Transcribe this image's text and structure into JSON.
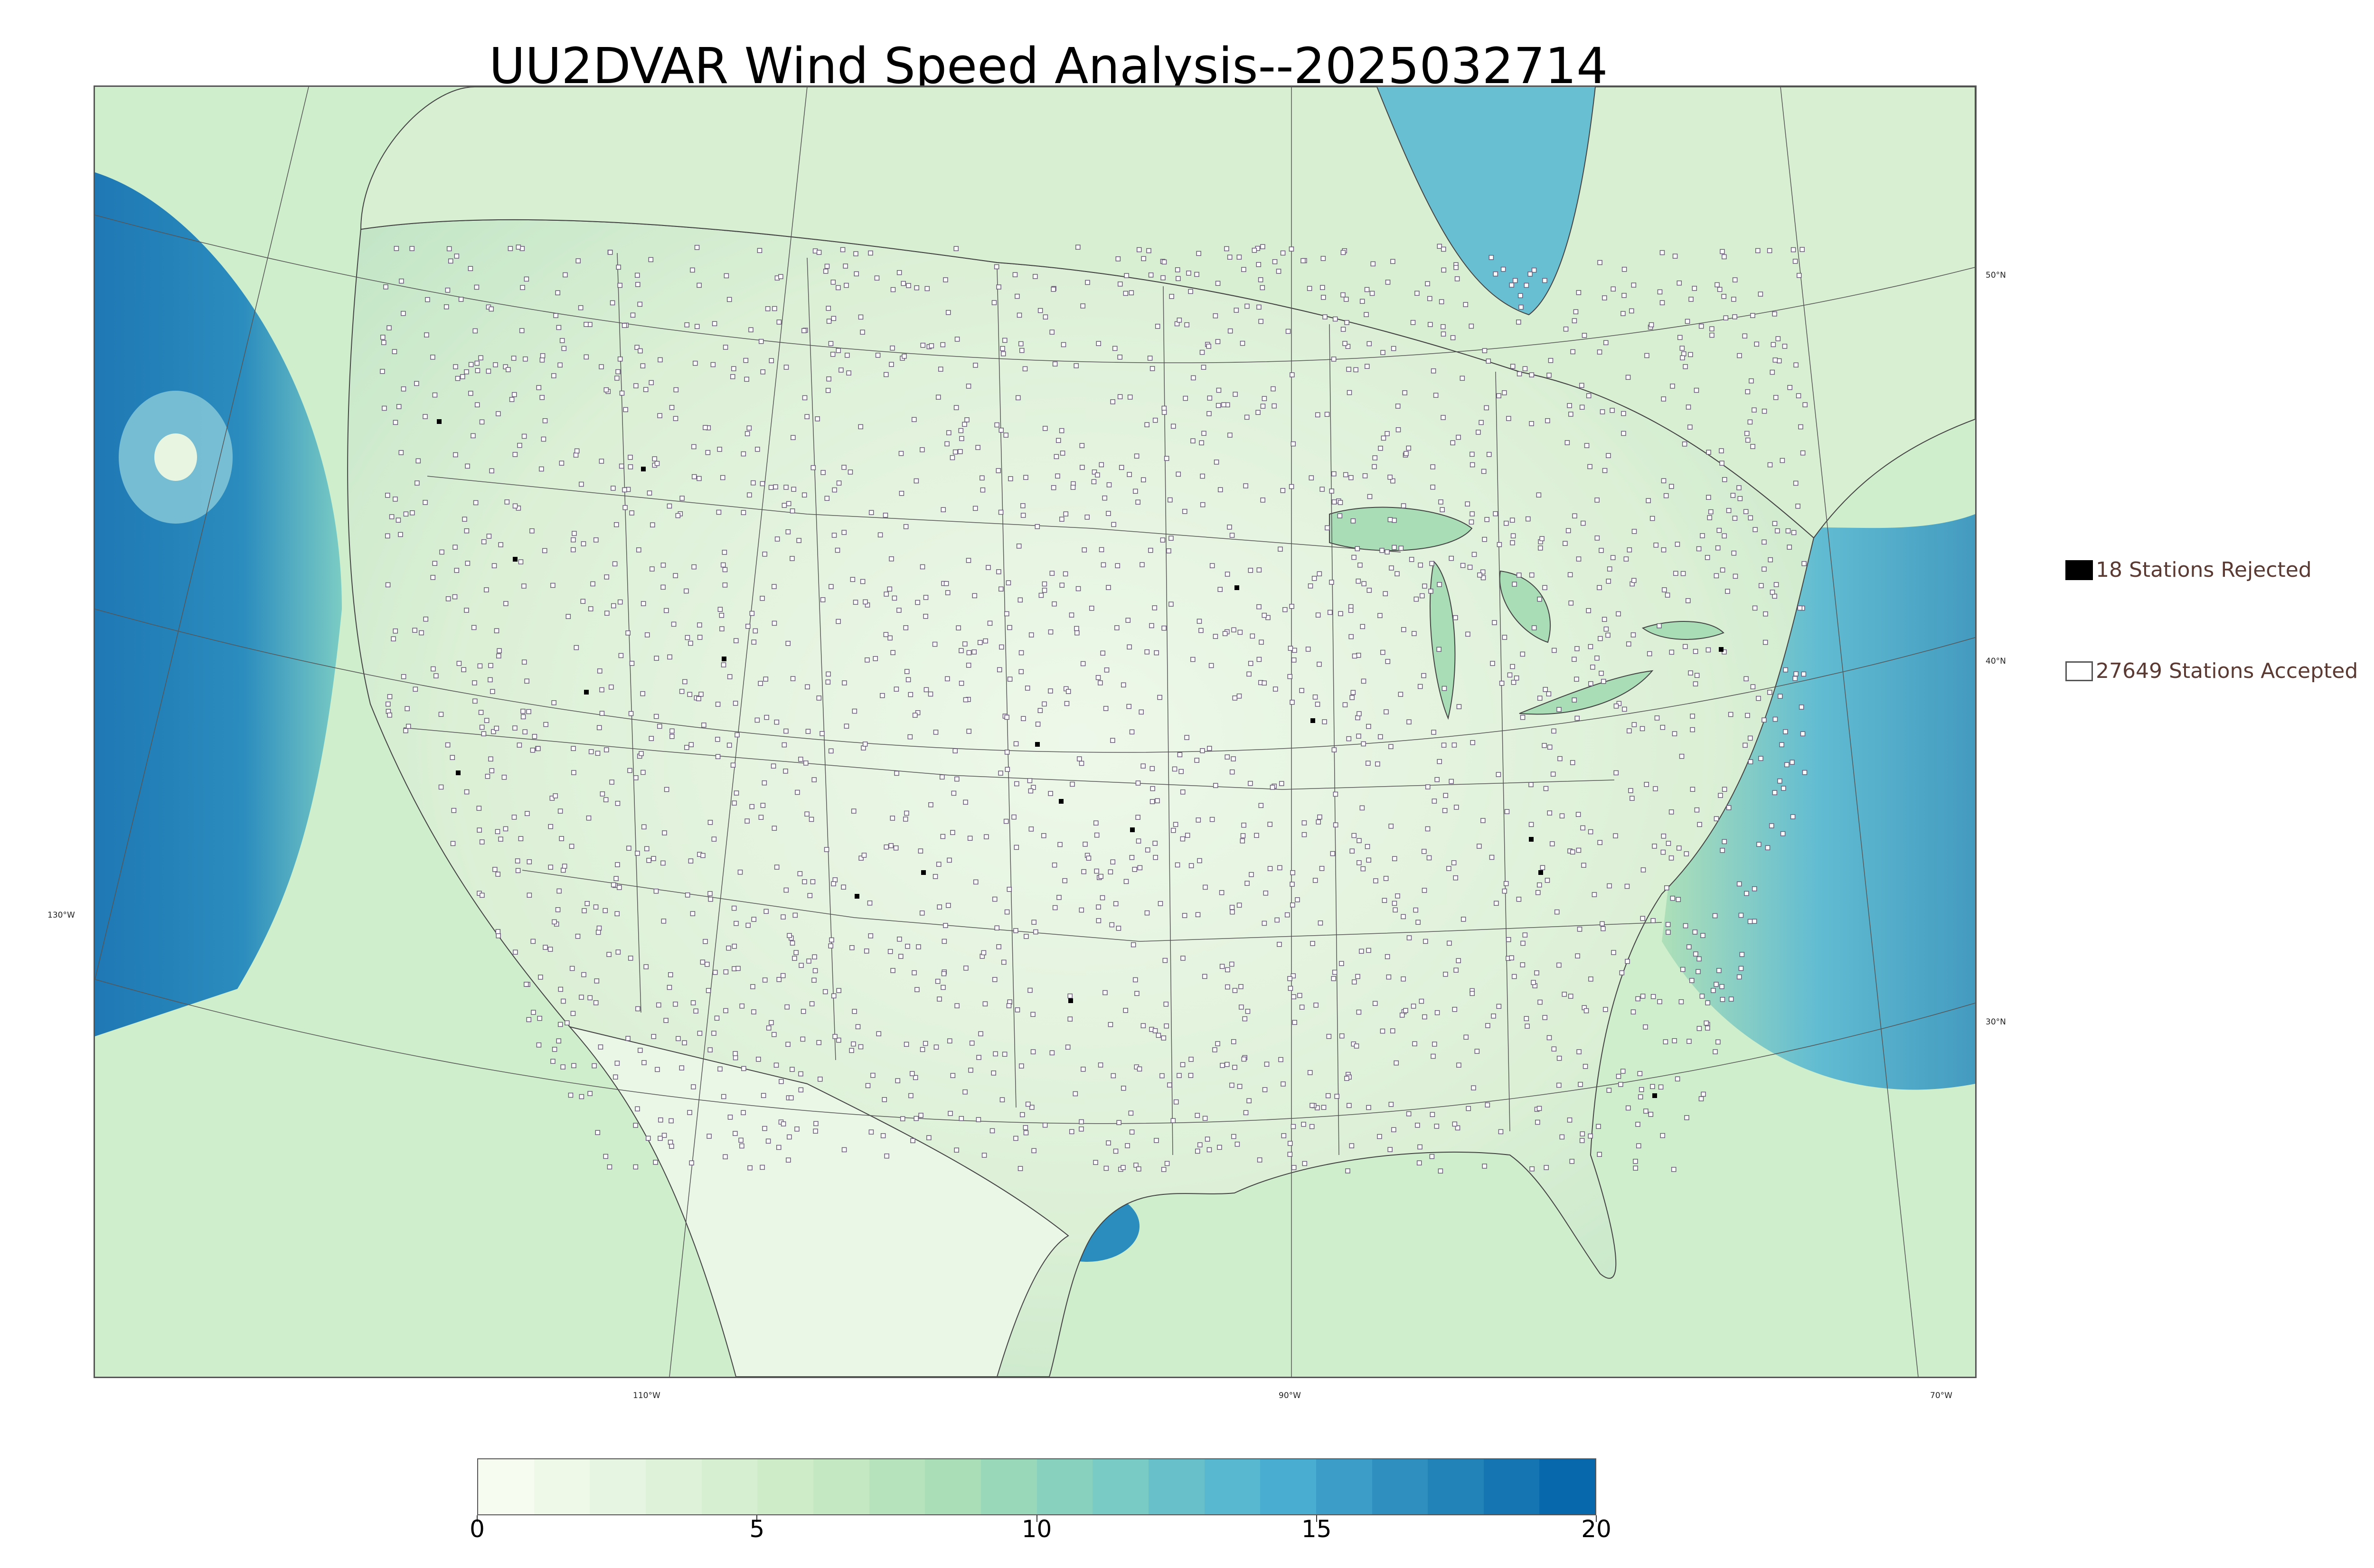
{
  "title": "UU2DVAR Wind Speed Analysis--2025032714",
  "map": {
    "projection": "lambert-conformal-conus",
    "fill_variable": "wind speed",
    "lon_labels": [
      "130°W",
      "110°W",
      "90°W",
      "70°W"
    ],
    "lat_labels": [
      "50°N",
      "40°N",
      "30°N"
    ],
    "land_fill_color": "#e4f3dc",
    "ocean_fill_color": "#7fc3d6",
    "boundary_color": "#444444",
    "station_marker_color": "#6b5b7a"
  },
  "legend": {
    "rejected": {
      "label": "18 Stations Rejected",
      "count": 18,
      "marker": "filled-black-square"
    },
    "accepted": {
      "label": "27649 Stations Accepted",
      "count": 27649,
      "marker": "open-square"
    }
  },
  "colorbar": {
    "min": 0,
    "max": 20,
    "tick_labels": [
      "0",
      "5",
      "10",
      "15",
      "20"
    ],
    "colormap": "GnBu",
    "colors": [
      "#f7fcf0",
      "#e0f3db",
      "#ccebc5",
      "#a8ddb5",
      "#7bccc4",
      "#4eb3d3",
      "#2b8cbe",
      "#0868ac"
    ]
  }
}
